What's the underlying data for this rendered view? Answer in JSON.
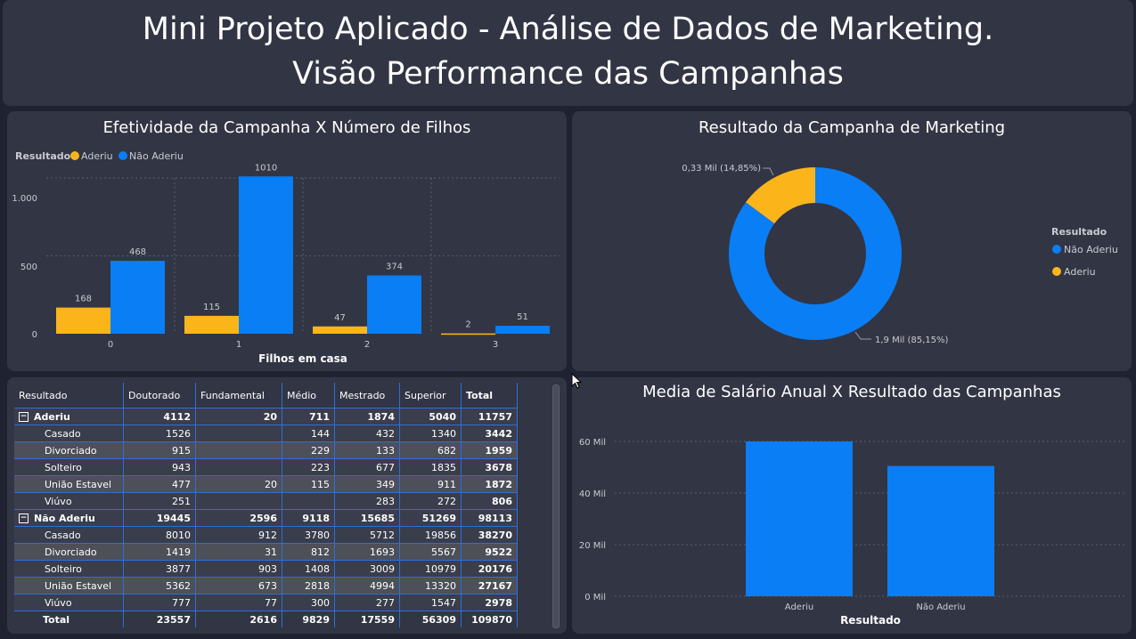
{
  "header": {
    "line1": "Mini Projeto Aplicado - Análise de Dados de Marketing.",
    "line2": "Visão Performance das Campanhas"
  },
  "colors": {
    "aderiu": "#fbb51a",
    "nao_aderiu": "#0a7ef5"
  },
  "bar_panel": {
    "title": "Efetividade da Campanha X Número de Filhos",
    "legend_title": "Resultado",
    "legend": [
      "Aderiu",
      "Não Aderiu"
    ],
    "y_ticks": [
      "1.000",
      "500",
      "0"
    ],
    "x_title": "Filhos em casa"
  },
  "donut_panel": {
    "title": "Resultado da Campanha de Marketing",
    "legend_title": "Resultado",
    "legend": [
      "Não Aderiu",
      "Aderiu"
    ],
    "labels": [
      "0,33 Mil (14,85%)",
      "1,9 Mil (85,15%)"
    ]
  },
  "salary_panel": {
    "title": "Media de Salário Anual X Resultado das Campanhas",
    "y_ticks": [
      "60 Mil",
      "40 Mil",
      "20 Mil",
      "0 Mil"
    ],
    "x_title": "Resultado"
  },
  "chart_data": [
    {
      "type": "bar",
      "title": "Efetividade da Campanha X Número de Filhos",
      "xlabel": "Filhos em casa",
      "ylabel": "",
      "categories": [
        "0",
        "1",
        "2",
        "3"
      ],
      "series": [
        {
          "name": "Aderiu",
          "values": [
            168,
            115,
            47,
            2
          ]
        },
        {
          "name": "Não Aderiu",
          "values": [
            468,
            1010,
            374,
            51
          ]
        }
      ],
      "ylim": [
        0,
        1000
      ],
      "legend": "top-left",
      "grid": true
    },
    {
      "type": "pie",
      "title": "Resultado da Campanha de Marketing",
      "categories": [
        "Não Aderiu",
        "Aderiu"
      ],
      "values": [
        85.15,
        14.85
      ],
      "legend": "right"
    },
    {
      "type": "bar",
      "title": "Media de Salário Anual X Resultado das Campanhas",
      "xlabel": "Resultado",
      "ylabel": "",
      "categories": [
        "Aderiu",
        "Não Aderiu"
      ],
      "values": [
        60000,
        50500
      ],
      "ylim": [
        0,
        60000
      ],
      "grid": true
    }
  ],
  "table": {
    "columns": [
      "Resultado",
      "Doutorado",
      "Fundamental",
      "Médio",
      "Mestrado",
      "Superior",
      "Total"
    ],
    "groups": [
      {
        "label": "Aderiu",
        "expander": "⊟",
        "values": [
          "4112",
          "20",
          "711",
          "1874",
          "5040",
          "11757"
        ],
        "rows": [
          {
            "label": "Casado",
            "values": [
              "1526",
              "",
              "144",
              "432",
              "1340",
              "3442"
            ]
          },
          {
            "label": "Divorciado",
            "values": [
              "915",
              "",
              "229",
              "133",
              "682",
              "1959"
            ]
          },
          {
            "label": "Solteiro",
            "values": [
              "943",
              "",
              "223",
              "677",
              "1835",
              "3678"
            ]
          },
          {
            "label": "União Estavel",
            "values": [
              "477",
              "20",
              "115",
              "349",
              "911",
              "1872"
            ]
          },
          {
            "label": "Viúvo",
            "values": [
              "251",
              "",
              "",
              "283",
              "272",
              "806"
            ]
          }
        ]
      },
      {
        "label": "Não Aderiu",
        "expander": "⊟",
        "values": [
          "19445",
          "2596",
          "9118",
          "15685",
          "51269",
          "98113"
        ],
        "rows": [
          {
            "label": "Casado",
            "values": [
              "8010",
              "912",
              "3780",
              "5712",
              "19856",
              "38270"
            ]
          },
          {
            "label": "Divorciado",
            "values": [
              "1419",
              "31",
              "812",
              "1693",
              "5567",
              "9522"
            ]
          },
          {
            "label": "Solteiro",
            "values": [
              "3877",
              "903",
              "1408",
              "3009",
              "10979",
              "20176"
            ]
          },
          {
            "label": "União Estavel",
            "values": [
              "5362",
              "673",
              "2818",
              "4994",
              "13320",
              "27167"
            ]
          },
          {
            "label": "Viúvo",
            "values": [
              "777",
              "77",
              "300",
              "277",
              "1547",
              "2978"
            ]
          }
        ]
      }
    ],
    "total": {
      "label": "Total",
      "values": [
        "23557",
        "2616",
        "9829",
        "17559",
        "56309",
        "109870"
      ]
    }
  }
}
